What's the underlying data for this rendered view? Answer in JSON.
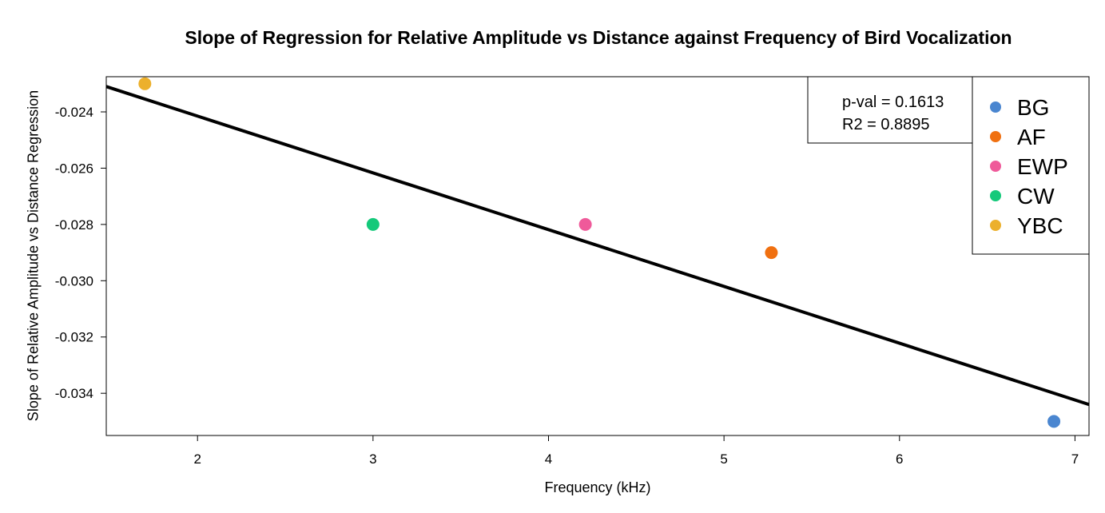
{
  "chart_data": {
    "type": "scatter",
    "title": "Slope of Regression for Relative Amplitude vs Distance against Frequency of Bird Vocalization",
    "xlabel": "Frequency (kHz)",
    "ylabel": "Slope of Relative Amplitude vs Distance Regression",
    "xlim": [
      1.48,
      7.08
    ],
    "ylim": [
      -0.0355,
      -0.02275
    ],
    "x_ticks": [
      2,
      3,
      4,
      5,
      6,
      7
    ],
    "y_ticks": [
      -0.024,
      -0.026,
      -0.028,
      -0.03,
      -0.032,
      -0.034
    ],
    "x_tick_labels": [
      "2",
      "3",
      "4",
      "5",
      "6",
      "7"
    ],
    "y_tick_labels": [
      "-0.024",
      "-0.026",
      "-0.028",
      "-0.030",
      "-0.032",
      "-0.034"
    ],
    "points": [
      {
        "label": "BG",
        "x": 6.88,
        "y": -0.035,
        "color": "#4a86d0"
      },
      {
        "label": "AF",
        "x": 5.27,
        "y": -0.029,
        "color": "#f07010"
      },
      {
        "label": "EWP",
        "x": 4.21,
        "y": -0.028,
        "color": "#ef5a9a"
      },
      {
        "label": "CW",
        "x": 3.0,
        "y": -0.028,
        "color": "#14c97a"
      },
      {
        "label": "YBC",
        "x": 1.7,
        "y": -0.023,
        "color": "#ecb02c"
      }
    ],
    "regression_line": {
      "x": [
        1.48,
        7.08
      ],
      "y": [
        -0.0231,
        -0.0344
      ],
      "color": "#000000"
    },
    "stats": {
      "pval_text": "p-val = 0.1613",
      "r2_text": "R2 = 0.8895"
    },
    "legend": {
      "placement": "top-right",
      "entries": [
        {
          "label": "BG",
          "color": "#4a86d0"
        },
        {
          "label": "AF",
          "color": "#f07010"
        },
        {
          "label": "EWP",
          "color": "#ef5a9a"
        },
        {
          "label": "CW",
          "color": "#14c97a"
        },
        {
          "label": "YBC",
          "color": "#ecb02c"
        }
      ]
    },
    "grid": false
  }
}
